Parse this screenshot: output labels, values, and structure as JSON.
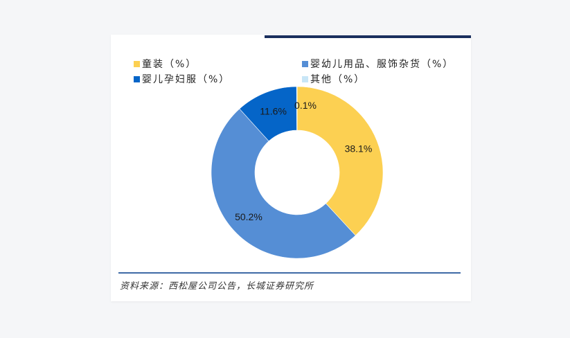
{
  "chart_data": {
    "type": "pie",
    "variant": "donut",
    "title": "",
    "categories": [
      "童装（%）",
      "婴幼儿用品、服饰杂货（%）",
      "婴儿孕妇服（%）",
      "其他（%）"
    ],
    "values": [
      38.1,
      50.2,
      11.6,
      0.1
    ],
    "labels": [
      "38.1%",
      "50.2%",
      "11.6%",
      "0.1%"
    ],
    "colors": [
      "#fcd052",
      "#558ed5",
      "#0565c8",
      "#c8e6f7"
    ],
    "start_angle_deg": 0,
    "direction": "clockwise",
    "legend_position": "top",
    "legend": [
      {
        "label": "童装（%）",
        "color": "#fcd052"
      },
      {
        "label": "婴幼儿用品、服饰杂货（%）",
        "color": "#558ed5"
      },
      {
        "label": "婴儿孕妇服（%）",
        "color": "#0565c8"
      },
      {
        "label": "其他（%）",
        "color": "#c8e6f7"
      }
    ]
  },
  "source": "资料来源：西松屋公司公告，长城证券研究所"
}
